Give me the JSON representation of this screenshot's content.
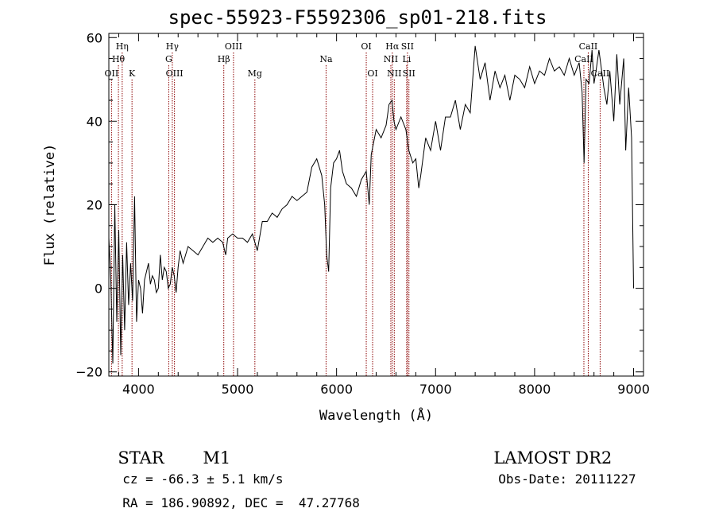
{
  "figure": {
    "title": "spec-55923-F5592306_sp01-218.fits",
    "object_class": "STAR",
    "subclass": "M1",
    "survey": "LAMOST DR2",
    "redshift_line": "cz = -66.3 ± 5.1 km/s",
    "coord_line": "RA = 186.90892, DEC =  47.27768",
    "obsdate_line": "Obs-Date: 20111227"
  },
  "chart_data": {
    "type": "line",
    "xlabel": "Wavelength (Å)",
    "ylabel": "Flux (relative)",
    "xlim": [
      3700,
      9100
    ],
    "ylim": [
      -21,
      61
    ],
    "xticks": [
      4000,
      5000,
      6000,
      7000,
      8000,
      9000
    ],
    "yticks": [
      -20,
      0,
      20,
      40,
      60
    ],
    "line_color": "#000000",
    "marker_color": "#8b0000",
    "spectrum": [
      [
        3700,
        12
      ],
      [
        3720,
        2
      ],
      [
        3740,
        -18
      ],
      [
        3760,
        20
      ],
      [
        3780,
        -8
      ],
      [
        3800,
        14
      ],
      [
        3820,
        -16
      ],
      [
        3840,
        8
      ],
      [
        3860,
        -10
      ],
      [
        3880,
        11
      ],
      [
        3900,
        -4
      ],
      [
        3920,
        6
      ],
      [
        3940,
        -3
      ],
      [
        3960,
        22
      ],
      [
        3980,
        -8
      ],
      [
        4000,
        2
      ],
      [
        4020,
        0
      ],
      [
        4040,
        -6
      ],
      [
        4060,
        2
      ],
      [
        4080,
        4
      ],
      [
        4100,
        6
      ],
      [
        4120,
        1
      ],
      [
        4140,
        3
      ],
      [
        4160,
        2
      ],
      [
        4180,
        -1
      ],
      [
        4200,
        0
      ],
      [
        4220,
        8
      ],
      [
        4240,
        2
      ],
      [
        4260,
        5
      ],
      [
        4280,
        4
      ],
      [
        4300,
        0
      ],
      [
        4320,
        1
      ],
      [
        4340,
        5
      ],
      [
        4360,
        3
      ],
      [
        4380,
        -1
      ],
      [
        4400,
        5
      ],
      [
        4420,
        9
      ],
      [
        4450,
        6
      ],
      [
        4500,
        10
      ],
      [
        4550,
        9
      ],
      [
        4600,
        8
      ],
      [
        4650,
        10
      ],
      [
        4700,
        12
      ],
      [
        4750,
        11
      ],
      [
        4800,
        12
      ],
      [
        4850,
        11
      ],
      [
        4880,
        8
      ],
      [
        4900,
        12
      ],
      [
        4950,
        13
      ],
      [
        5000,
        12
      ],
      [
        5050,
        12
      ],
      [
        5100,
        11
      ],
      [
        5150,
        13
      ],
      [
        5200,
        9
      ],
      [
        5250,
        16
      ],
      [
        5300,
        16
      ],
      [
        5350,
        18
      ],
      [
        5400,
        17
      ],
      [
        5450,
        19
      ],
      [
        5500,
        20
      ],
      [
        5550,
        22
      ],
      [
        5600,
        21
      ],
      [
        5650,
        22
      ],
      [
        5700,
        23
      ],
      [
        5750,
        29
      ],
      [
        5800,
        31
      ],
      [
        5850,
        27
      ],
      [
        5880,
        20
      ],
      [
        5900,
        8
      ],
      [
        5920,
        4
      ],
      [
        5940,
        24
      ],
      [
        5970,
        30
      ],
      [
        6000,
        31
      ],
      [
        6030,
        33
      ],
      [
        6060,
        28
      ],
      [
        6100,
        25
      ],
      [
        6150,
        24
      ],
      [
        6200,
        22
      ],
      [
        6250,
        26
      ],
      [
        6300,
        28
      ],
      [
        6330,
        20
      ],
      [
        6350,
        32
      ],
      [
        6400,
        38
      ],
      [
        6450,
        36
      ],
      [
        6500,
        39
      ],
      [
        6530,
        44
      ],
      [
        6560,
        45
      ],
      [
        6580,
        40
      ],
      [
        6600,
        38
      ],
      [
        6650,
        41
      ],
      [
        6700,
        38
      ],
      [
        6730,
        33
      ],
      [
        6770,
        30
      ],
      [
        6800,
        31
      ],
      [
        6830,
        24
      ],
      [
        6850,
        27
      ],
      [
        6900,
        36
      ],
      [
        6950,
        33
      ],
      [
        7000,
        40
      ],
      [
        7050,
        33
      ],
      [
        7100,
        41
      ],
      [
        7150,
        41
      ],
      [
        7200,
        45
      ],
      [
        7250,
        38
      ],
      [
        7300,
        44
      ],
      [
        7350,
        42
      ],
      [
        7400,
        58
      ],
      [
        7450,
        50
      ],
      [
        7500,
        54
      ],
      [
        7550,
        45
      ],
      [
        7600,
        52
      ],
      [
        7650,
        48
      ],
      [
        7700,
        51
      ],
      [
        7750,
        45
      ],
      [
        7800,
        51
      ],
      [
        7850,
        50
      ],
      [
        7900,
        48
      ],
      [
        7950,
        53
      ],
      [
        8000,
        49
      ],
      [
        8050,
        52
      ],
      [
        8100,
        51
      ],
      [
        8150,
        55
      ],
      [
        8200,
        52
      ],
      [
        8250,
        53
      ],
      [
        8300,
        51
      ],
      [
        8350,
        55
      ],
      [
        8400,
        51
      ],
      [
        8450,
        54
      ],
      [
        8480,
        47
      ],
      [
        8500,
        30
      ],
      [
        8520,
        50
      ],
      [
        8550,
        49
      ],
      [
        8580,
        57
      ],
      [
        8600,
        49
      ],
      [
        8620,
        52
      ],
      [
        8650,
        57
      ],
      [
        8700,
        48
      ],
      [
        8730,
        44
      ],
      [
        8760,
        52
      ],
      [
        8800,
        40
      ],
      [
        8830,
        56
      ],
      [
        8860,
        44
      ],
      [
        8900,
        55
      ],
      [
        8920,
        33
      ],
      [
        8950,
        48
      ],
      [
        8980,
        36
      ],
      [
        9000,
        0
      ]
    ],
    "line_markers": [
      {
        "label": "Hη",
        "wavelength": 3835,
        "row": 0
      },
      {
        "label": "Hθ",
        "wavelength": 3797,
        "row": 1
      },
      {
        "label": "OII",
        "wavelength": 3727,
        "row": 2
      },
      {
        "label": "K",
        "wavelength": 3934,
        "row": 2
      },
      {
        "label": "Hγ",
        "wavelength": 4341,
        "row": 0
      },
      {
        "label": "G",
        "wavelength": 4305,
        "row": 1
      },
      {
        "label": "OIII",
        "wavelength": 4363,
        "row": 2
      },
      {
        "label": "OIII",
        "wavelength": 4959,
        "row": 0
      },
      {
        "label": "Hβ",
        "wavelength": 4861,
        "row": 1
      },
      {
        "label": "Mg",
        "wavelength": 5175,
        "row": 2
      },
      {
        "label": "Na",
        "wavelength": 5894,
        "row": 1
      },
      {
        "label": "OI",
        "wavelength": 6300,
        "row": 0
      },
      {
        "label": "OI",
        "wavelength": 6364,
        "row": 2
      },
      {
        "label": "Hα",
        "wavelength": 6563,
        "row": 0
      },
      {
        "label": "SII",
        "wavelength": 6716,
        "row": 0
      },
      {
        "label": "NII",
        "wavelength": 6548,
        "row": 1
      },
      {
        "label": "Li",
        "wavelength": 6708,
        "row": 1
      },
      {
        "label": "NII",
        "wavelength": 6583,
        "row": 2
      },
      {
        "label": "SII",
        "wavelength": 6731,
        "row": 2
      },
      {
        "label": "CaII",
        "wavelength": 8542,
        "row": 0
      },
      {
        "label": "CaII",
        "wavelength": 8498,
        "row": 1
      },
      {
        "label": "CaII",
        "wavelength": 8662,
        "row": 2
      }
    ]
  }
}
